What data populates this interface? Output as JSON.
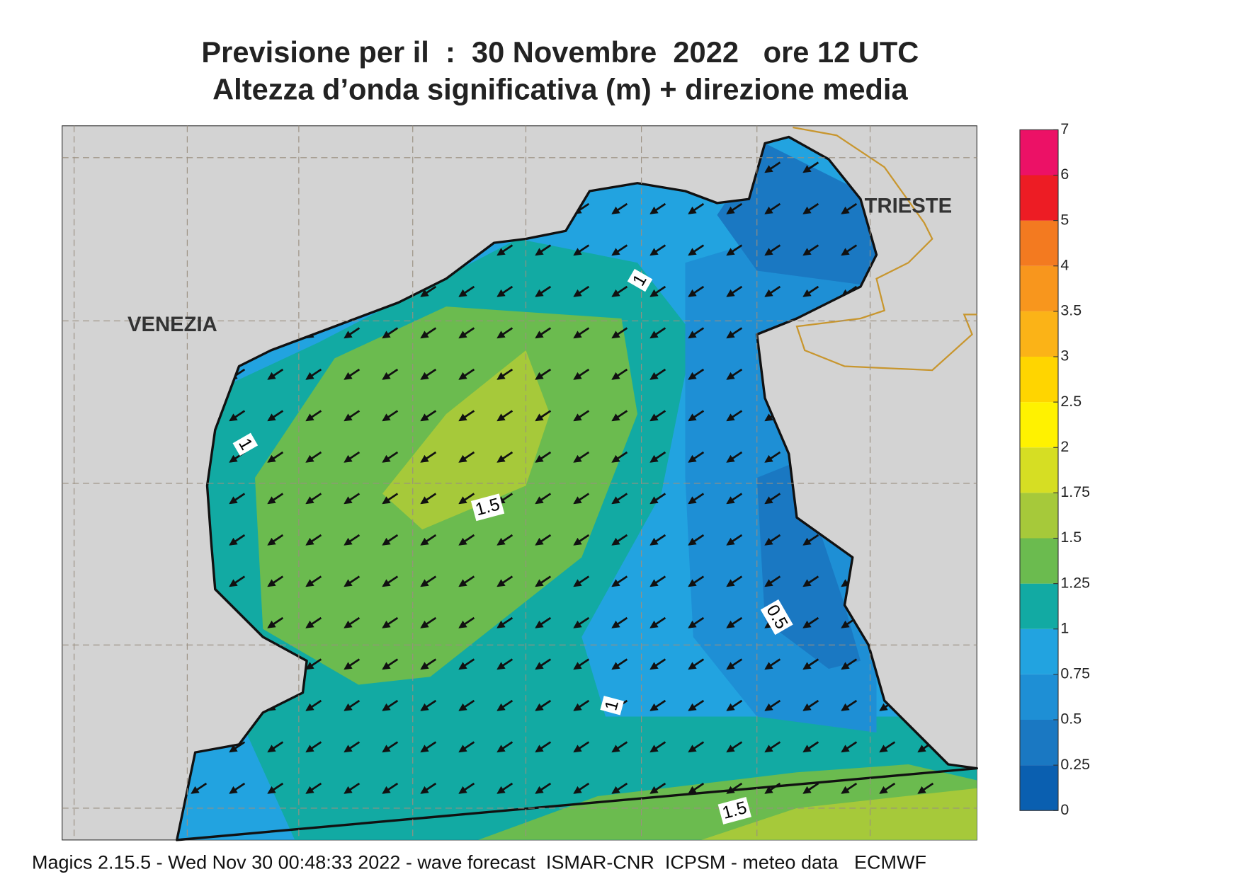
{
  "header": {
    "title_line1": "Previsione per il  :  30 Novembre  2022   ore 12 UTC",
    "title_line2": "Altezza d’onda significativa (m) + direzione media"
  },
  "map": {
    "place_labels": [
      "VENEZIA",
      "TRIESTE"
    ],
    "contour_labels": [
      1,
      1,
      1.5,
      0.5,
      1,
      1.5
    ]
  },
  "colorbar": {
    "levels": [
      0,
      0.25,
      0.5,
      0.75,
      1,
      1.25,
      1.5,
      1.75,
      2,
      2.5,
      3,
      3.5,
      4,
      5,
      6,
      7
    ],
    "colors": [
      "#0a5fb0",
      "#1a78c2",
      "#1e8fd5",
      "#22a3e0",
      "#12aaa3",
      "#6bbb4f",
      "#a6c93a",
      "#d6de23",
      "#fff200",
      "#ffd500",
      "#fbb317",
      "#f8961d",
      "#f37a20",
      "#ed1c24",
      "#ec1166"
    ]
  },
  "footer": "Magics 2.15.5 - Wed Nov 30 00:48:33 2022 - wave forecast  ISMAR-CNR  ICPSM - meteo data   ECMWF"
}
